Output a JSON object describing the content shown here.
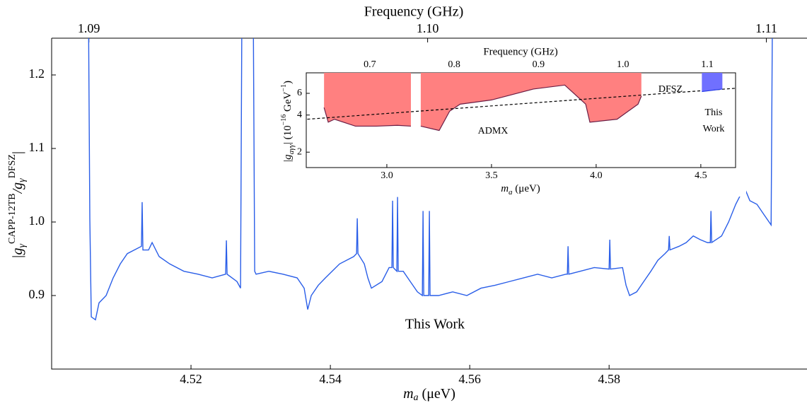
{
  "chart_data": [
    {
      "type": "line",
      "xlabel": [
        "m",
        "a",
        " (μeV)"
      ],
      "ylabel": [
        "|g",
        "γ",
        "CAPP-12TB",
        "/g",
        "γ",
        "DFSZ",
        "|"
      ],
      "x2label": "Frequency (GHz)",
      "annotations": [
        "This Work"
      ],
      "color": "#2a5ee8",
      "xlim": [
        4.5,
        4.6084
      ],
      "xticks": [
        4.52,
        4.54,
        4.56,
        4.58
      ],
      "x2lim": [
        1.0889,
        1.1112
      ],
      "x2ticks": [
        1.09,
        {
          "value": 1.1,
          "label": "1.10"
        },
        1.11
      ],
      "ylim": [
        0.8,
        1.25
      ],
      "yticks": [
        0.9,
        {
          "value": 1,
          "label": "1.0"
        },
        1.1,
        1.2
      ],
      "x": [
        4.50528,
        4.50548,
        4.50569,
        4.50629,
        4.5068,
        4.50782,
        4.50883,
        4.50985,
        4.51086,
        4.51188,
        4.51289,
        4.51299,
        4.5131,
        4.51391,
        4.51442,
        4.51543,
        4.51695,
        4.51898,
        4.52101,
        4.52304,
        4.52497,
        4.52508,
        4.52518,
        4.5266,
        4.52711,
        4.52731,
        4.52893,
        4.52914,
        4.52934,
        4.53117,
        4.5332,
        4.53523,
        4.53624,
        4.53675,
        4.53726,
        4.53827,
        4.53929,
        4.54132,
        4.54335,
        4.54376,
        4.54386,
        4.54396,
        4.54487,
        4.54538,
        4.54589,
        4.54741,
        4.54843,
        4.54883,
        4.54893,
        4.54903,
        4.54954,
        4.54964,
        4.54974,
        4.55046,
        4.55147,
        4.55249,
        4.5532,
        4.5533,
        4.5534,
        4.55411,
        4.55421,
        4.55431,
        4.55553,
        4.55756,
        4.55959,
        4.56162,
        4.56365,
        4.56568,
        4.56771,
        4.56974,
        4.57177,
        4.5738,
        4.57401,
        4.57411,
        4.57421,
        4.57584,
        4.57787,
        4.58,
        4.5801,
        4.5802,
        4.58193,
        4.58243,
        4.58294,
        4.58396,
        4.58497,
        4.58599,
        4.587,
        4.58802,
        4.58853,
        4.58863,
        4.58873,
        4.59005,
        4.59106,
        4.59208,
        4.59309,
        4.59411,
        4.59452,
        4.59462,
        4.59472,
        4.59614,
        4.59715,
        4.59817,
        4.59919,
        4.59939,
        4.59949,
        4.59959,
        4.6002,
        4.60122,
        4.60223,
        4.60325,
        4.60345
      ],
      "values": [
        1.3,
        1.005,
        0.871,
        0.867,
        0.89,
        0.9,
        0.924,
        0.943,
        0.957,
        0.962,
        0.967,
        1.027,
        0.962,
        0.962,
        0.972,
        0.953,
        0.943,
        0.933,
        0.929,
        0.924,
        0.929,
        0.975,
        0.929,
        0.919,
        0.91,
        1.3,
        1.3,
        0.933,
        0.929,
        0.933,
        0.929,
        0.924,
        0.91,
        0.881,
        0.9,
        0.914,
        0.924,
        0.943,
        0.953,
        0.957,
        1.005,
        0.957,
        0.943,
        0.924,
        0.91,
        0.919,
        0.938,
        0.938,
        1.029,
        0.938,
        0.933,
        1.034,
        0.933,
        0.933,
        0.919,
        0.905,
        0.9,
        1.015,
        0.9,
        0.9,
        1.015,
        0.9,
        0.9,
        0.905,
        0.9,
        0.91,
        0.914,
        0.919,
        0.924,
        0.929,
        0.924,
        0.929,
        0.929,
        0.967,
        0.929,
        0.933,
        0.938,
        0.936,
        0.976,
        0.936,
        0.938,
        0.914,
        0.9,
        0.905,
        0.919,
        0.933,
        0.948,
        0.957,
        0.962,
        0.981,
        0.962,
        0.967,
        0.972,
        0.981,
        0.976,
        0.972,
        0.972,
        1.015,
        0.972,
        0.981,
        1.0,
        1.024,
        1.043,
        1.043,
        1.058,
        1.043,
        1.029,
        1.024,
        1.01,
        0.996,
        1.3
      ]
    },
    {
      "type": "line",
      "ylog": true,
      "xlabel": [
        "m",
        "a",
        " (μeV)"
      ],
      "ylabel": [
        "|g",
        "aγγ",
        "| (10",
        "−16",
        " GeV",
        "−1",
        ")"
      ],
      "x2label": "Frequency (GHz)",
      "annotations": [
        "ADMX",
        "DFSZ",
        [
          "This",
          "Work"
        ]
      ],
      "xlim": [
        2.615,
        4.666
      ],
      "xticks": [
        {
          "value": 3,
          "label": "3.0"
        },
        3.5,
        {
          "value": 4,
          "label": "4.0"
        },
        4.5
      ],
      "x2lim": [
        0.6247,
        1.1335
      ],
      "x2ticks": [
        0.7,
        0.8,
        0.9,
        {
          "value": 1,
          "label": "1.0"
        },
        1.1
      ],
      "ylim": [
        1.5,
        8.8
      ],
      "yticks": [
        2,
        4,
        6
      ],
      "series": [
        {
          "color": "#ff8080",
          "line_color": "#6b1e45",
          "fill": "above",
          "x": [
            2.7,
            2.72,
            2.75,
            2.85,
            2.95,
            3.05,
            3.115,
            3.14,
            3.162,
            3.25,
            3.3,
            3.35,
            3.5,
            3.7,
            3.85,
            3.95,
            3.97,
            4.1,
            4.2,
            4.216
          ],
          "values": [
            4.6,
            3.5,
            3.7,
            3.25,
            3.25,
            3.3,
            3.25,
            null,
            3.25,
            3.0,
            4.3,
            4.9,
            5.3,
            6.5,
            7.0,
            4.9,
            3.5,
            3.7,
            4.9,
            5.7
          ]
        },
        {
          "color": "#000000",
          "dashed": true,
          "x": [
            2.62,
            4.67
          ],
          "values": [
            3.7,
            6.6
          ]
        },
        {
          "color": "#7070ff",
          "line_color": "#2a3ee8",
          "fill": "above",
          "x": [
            4.505,
            4.603
          ],
          "values": [
            6.2,
            6.5
          ]
        }
      ]
    }
  ]
}
